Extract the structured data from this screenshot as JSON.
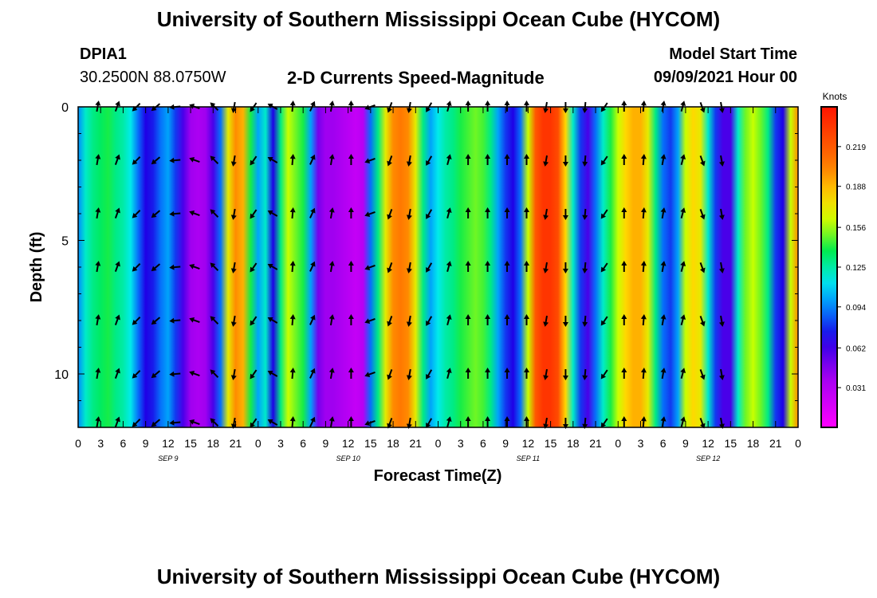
{
  "header": {
    "title": "University of Southern Mississippi Ocean Cube (HYCOM)",
    "station": "DPIA1",
    "coords": "30.2500N  88.0750W",
    "subtitle": "2-D Currents Speed-Magnitude",
    "start_label": "Model Start Time",
    "start_date": "09/09/2021 Hour 00"
  },
  "footer": {
    "title": "University of Southern Mississippi Ocean Cube (HYCOM)"
  },
  "chart_data": {
    "type": "heatmap",
    "title": "2-D Currents Speed-Magnitude",
    "xlabel": "Forecast Time(Z)",
    "ylabel": "Depth (ft)",
    "x_hours": [
      0,
      96
    ],
    "ylim": [
      0,
      12
    ],
    "x_tick_labels": [
      "0",
      "3",
      "6",
      "9",
      "12",
      "15",
      "18",
      "21",
      "0",
      "3",
      "6",
      "9",
      "12",
      "15",
      "18",
      "21",
      "0",
      "3",
      "6",
      "9",
      "12",
      "15",
      "18",
      "21",
      "0",
      "3",
      "6",
      "9",
      "12",
      "15",
      "18",
      "21",
      "0"
    ],
    "y_tick_values": [
      0,
      5,
      10
    ],
    "y_tick_labels": [
      "0",
      "5",
      "10"
    ],
    "day_labels": [
      {
        "label": "SEP 9",
        "hour": 12
      },
      {
        "label": "SEP 10",
        "hour": 36
      },
      {
        "label": "SEP 11",
        "hour": 60
      },
      {
        "label": "SEP 12",
        "hour": 84
      }
    ],
    "colorbar": {
      "unit": "Knots",
      "ticks": [
        "0.031",
        "0.062",
        "0.094",
        "0.125",
        "0.156",
        "0.188",
        "0.219"
      ],
      "min": 0.0,
      "max": 0.25
    },
    "speed_profile_hours": [
      0,
      1,
      2,
      3,
      4,
      5,
      6,
      7,
      8,
      9,
      10,
      11,
      12,
      13,
      14,
      15,
      16,
      17,
      18,
      19,
      20,
      21,
      22,
      23,
      24,
      25,
      26,
      27,
      28,
      29,
      30,
      31,
      32,
      33,
      34,
      35,
      36,
      37,
      38,
      39,
      40,
      41,
      42,
      43,
      44,
      45,
      46,
      47,
      48,
      49,
      50,
      51,
      52,
      53,
      54,
      55,
      56,
      57,
      58,
      59,
      60,
      61,
      62,
      63,
      64,
      65,
      66,
      67,
      68,
      69,
      70,
      71,
      72,
      73,
      74,
      75,
      76,
      77,
      78,
      79,
      80,
      81,
      82,
      83,
      84,
      85,
      86,
      87,
      88,
      89,
      90,
      91,
      92,
      93,
      94,
      95,
      96
    ],
    "speed_knots": [
      0.095,
      0.12,
      0.13,
      0.135,
      0.14,
      0.13,
      0.125,
      0.115,
      0.09,
      0.07,
      0.075,
      0.09,
      0.1,
      0.08,
      0.06,
      0.04,
      0.035,
      0.04,
      0.06,
      0.09,
      0.17,
      0.2,
      0.19,
      0.14,
      0.1,
      0.12,
      0.07,
      0.13,
      0.16,
      0.15,
      0.14,
      0.1,
      0.05,
      0.04,
      0.04,
      0.035,
      0.03,
      0.025,
      0.03,
      0.09,
      0.13,
      0.17,
      0.2,
      0.205,
      0.2,
      0.17,
      0.13,
      0.1,
      0.115,
      0.125,
      0.13,
      0.14,
      0.145,
      0.15,
      0.145,
      0.13,
      0.1,
      0.08,
      0.07,
      0.09,
      0.16,
      0.22,
      0.235,
      0.235,
      0.225,
      0.18,
      0.12,
      0.08,
      0.06,
      0.09,
      0.12,
      0.14,
      0.16,
      0.18,
      0.19,
      0.19,
      0.17,
      0.13,
      0.09,
      0.08,
      0.1,
      0.16,
      0.18,
      0.17,
      0.12,
      0.08,
      0.06,
      0.06,
      0.12,
      0.15,
      0.16,
      0.15,
      0.13,
      0.08,
      0.07,
      0.16,
      0.2
    ],
    "vector_depths_ft": [
      0,
      2,
      4,
      6,
      8,
      10,
      12
    ],
    "vectors": [
      {
        "hour": 2.6,
        "dir_deg": 10
      },
      {
        "hour": 5.2,
        "dir_deg": 20
      },
      {
        "hour": 7.8,
        "dir_deg": 225
      },
      {
        "hour": 10.4,
        "dir_deg": 230
      },
      {
        "hour": 13.0,
        "dir_deg": 265
      },
      {
        "hour": 15.6,
        "dir_deg": 290
      },
      {
        "hour": 18.2,
        "dir_deg": 315
      },
      {
        "hour": 20.8,
        "dir_deg": 190
      },
      {
        "hour": 23.4,
        "dir_deg": 215
      },
      {
        "hour": 26.0,
        "dir_deg": 300
      },
      {
        "hour": 28.6,
        "dir_deg": 5
      },
      {
        "hour": 31.2,
        "dir_deg": 25
      },
      {
        "hour": 33.8,
        "dir_deg": 10
      },
      {
        "hour": 36.4,
        "dir_deg": 0
      },
      {
        "hour": 39.0,
        "dir_deg": 250
      },
      {
        "hour": 41.6,
        "dir_deg": 200
      },
      {
        "hour": 44.2,
        "dir_deg": 190
      },
      {
        "hour": 46.8,
        "dir_deg": 210
      },
      {
        "hour": 49.4,
        "dir_deg": 15
      },
      {
        "hour": 52.0,
        "dir_deg": 0
      },
      {
        "hour": 54.6,
        "dir_deg": 0
      },
      {
        "hour": 57.2,
        "dir_deg": 0
      },
      {
        "hour": 59.8,
        "dir_deg": 0
      },
      {
        "hour": 62.4,
        "dir_deg": 190
      },
      {
        "hour": 65.0,
        "dir_deg": 180
      },
      {
        "hour": 67.6,
        "dir_deg": 185
      },
      {
        "hour": 70.2,
        "dir_deg": 215
      },
      {
        "hour": 72.8,
        "dir_deg": 0
      },
      {
        "hour": 75.4,
        "dir_deg": 5
      },
      {
        "hour": 78.0,
        "dir_deg": 10
      },
      {
        "hour": 80.6,
        "dir_deg": 15
      },
      {
        "hour": 83.2,
        "dir_deg": 160
      },
      {
        "hour": 85.8,
        "dir_deg": 170
      }
    ]
  }
}
